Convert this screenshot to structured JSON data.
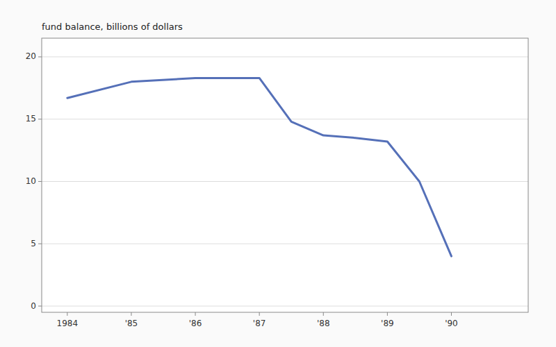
{
  "chart_data": {
    "type": "line",
    "ylabel": "fund balance, billions of dollars",
    "x": [
      1984,
      1985,
      1986,
      1987,
      1987.5,
      1988,
      1988.5,
      1989,
      1989.5,
      1990
    ],
    "values": [
      16.7,
      18.0,
      18.3,
      18.3,
      14.8,
      13.7,
      13.5,
      13.2,
      10.0,
      4.0
    ],
    "color": "#5570b8",
    "xlim": [
      1983.6,
      1991.2
    ],
    "ylim": [
      -0.5,
      21.5
    ],
    "xticks": [
      1984,
      {
        "value": 1985,
        "label": "'85"
      },
      {
        "value": 1986,
        "label": "'86"
      },
      {
        "value": 1987,
        "label": "'87"
      },
      {
        "value": 1988,
        "label": "'88"
      },
      {
        "value": 1989,
        "label": "'89"
      },
      {
        "value": 1990,
        "label": "'90"
      }
    ],
    "yticks": [
      0,
      5,
      10,
      15,
      20
    ],
    "grid": true
  }
}
